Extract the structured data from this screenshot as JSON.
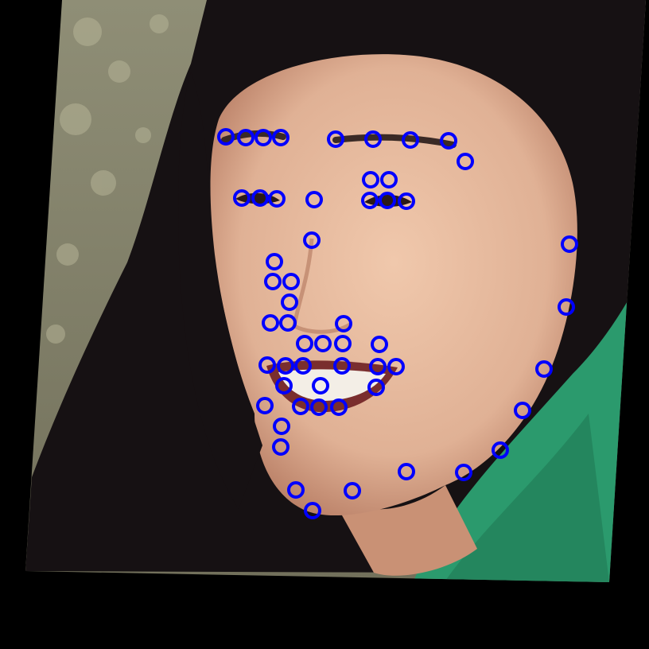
{
  "marker": {
    "color": "#0000ff",
    "shape": "ring"
  },
  "palette": {
    "border": "#000000",
    "rock": "#8a8a70",
    "hair": "#151012",
    "skin": "#e2b59c",
    "skin_shadow": "#c98f75",
    "hoodie": "#2a9a6c",
    "teeth": "#f3eee6",
    "mouth": "#7a2e2e"
  },
  "landmarks_count": 68
}
